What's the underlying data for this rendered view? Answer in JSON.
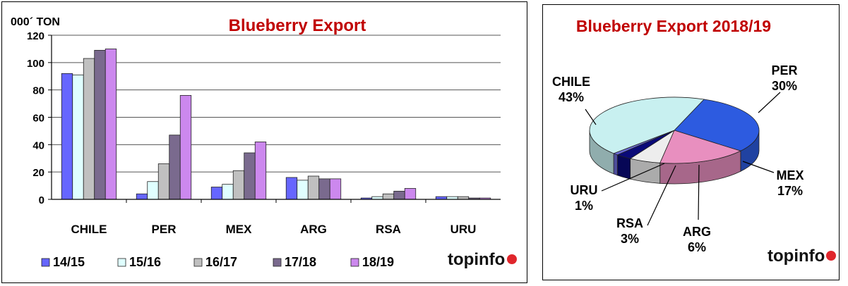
{
  "bar_chart": {
    "title": "Blueberry  Export",
    "unit_label": "000´ TON",
    "logo": "topinfo"
  },
  "pie_chart": {
    "title": "Blueberry Export 2018/19",
    "logo": "topinfo"
  },
  "colors": {
    "title_red": "#c00000",
    "series": [
      "#6666ff",
      "#e0ffff",
      "#c0c0c0",
      "#7a6a8e",
      "#cc88ee"
    ],
    "pie": {
      "CHILE": "#c8f0f0",
      "PER": "#2d5be0",
      "MEX": "#e88fbf",
      "ARG": "#ededed",
      "RSA": "#0a0a78",
      "URU": "#6b6bd6"
    }
  },
  "chart_data": [
    {
      "type": "bar",
      "title": "Blueberry  Export",
      "ylabel": "000´ TON",
      "xlabel": "",
      "categories": [
        "CHILE",
        "PER",
        "MEX",
        "ARG",
        "RSA",
        "URU"
      ],
      "series": [
        {
          "name": "14/15",
          "values": [
            92,
            4,
            9,
            16,
            1,
            2
          ]
        },
        {
          "name": "15/16",
          "values": [
            91,
            13,
            11,
            14,
            2,
            2
          ]
        },
        {
          "name": "16/17",
          "values": [
            103,
            26,
            21,
            17,
            4,
            2
          ]
        },
        {
          "name": "17/18",
          "values": [
            109,
            47,
            34,
            15,
            6,
            1
          ]
        },
        {
          "name": "18/19",
          "values": [
            110,
            76,
            42,
            15,
            8,
            1
          ]
        }
      ],
      "ylim": [
        0,
        120
      ],
      "yticks": [
        0,
        20,
        40,
        60,
        80,
        100,
        120
      ],
      "grid": true,
      "legend": "bottom"
    },
    {
      "type": "pie",
      "title": "Blueberry Export 2018/19",
      "slices": [
        {
          "label": "CHILE",
          "value": 43,
          "text": "43%"
        },
        {
          "label": "PER",
          "value": 30,
          "text": "30%"
        },
        {
          "label": "MEX",
          "value": 17,
          "text": "17%"
        },
        {
          "label": "ARG",
          "value": 6,
          "text": "6%"
        },
        {
          "label": "RSA",
          "value": 3,
          "text": "3%"
        },
        {
          "label": "URU",
          "value": 1,
          "text": "1%"
        }
      ]
    }
  ]
}
